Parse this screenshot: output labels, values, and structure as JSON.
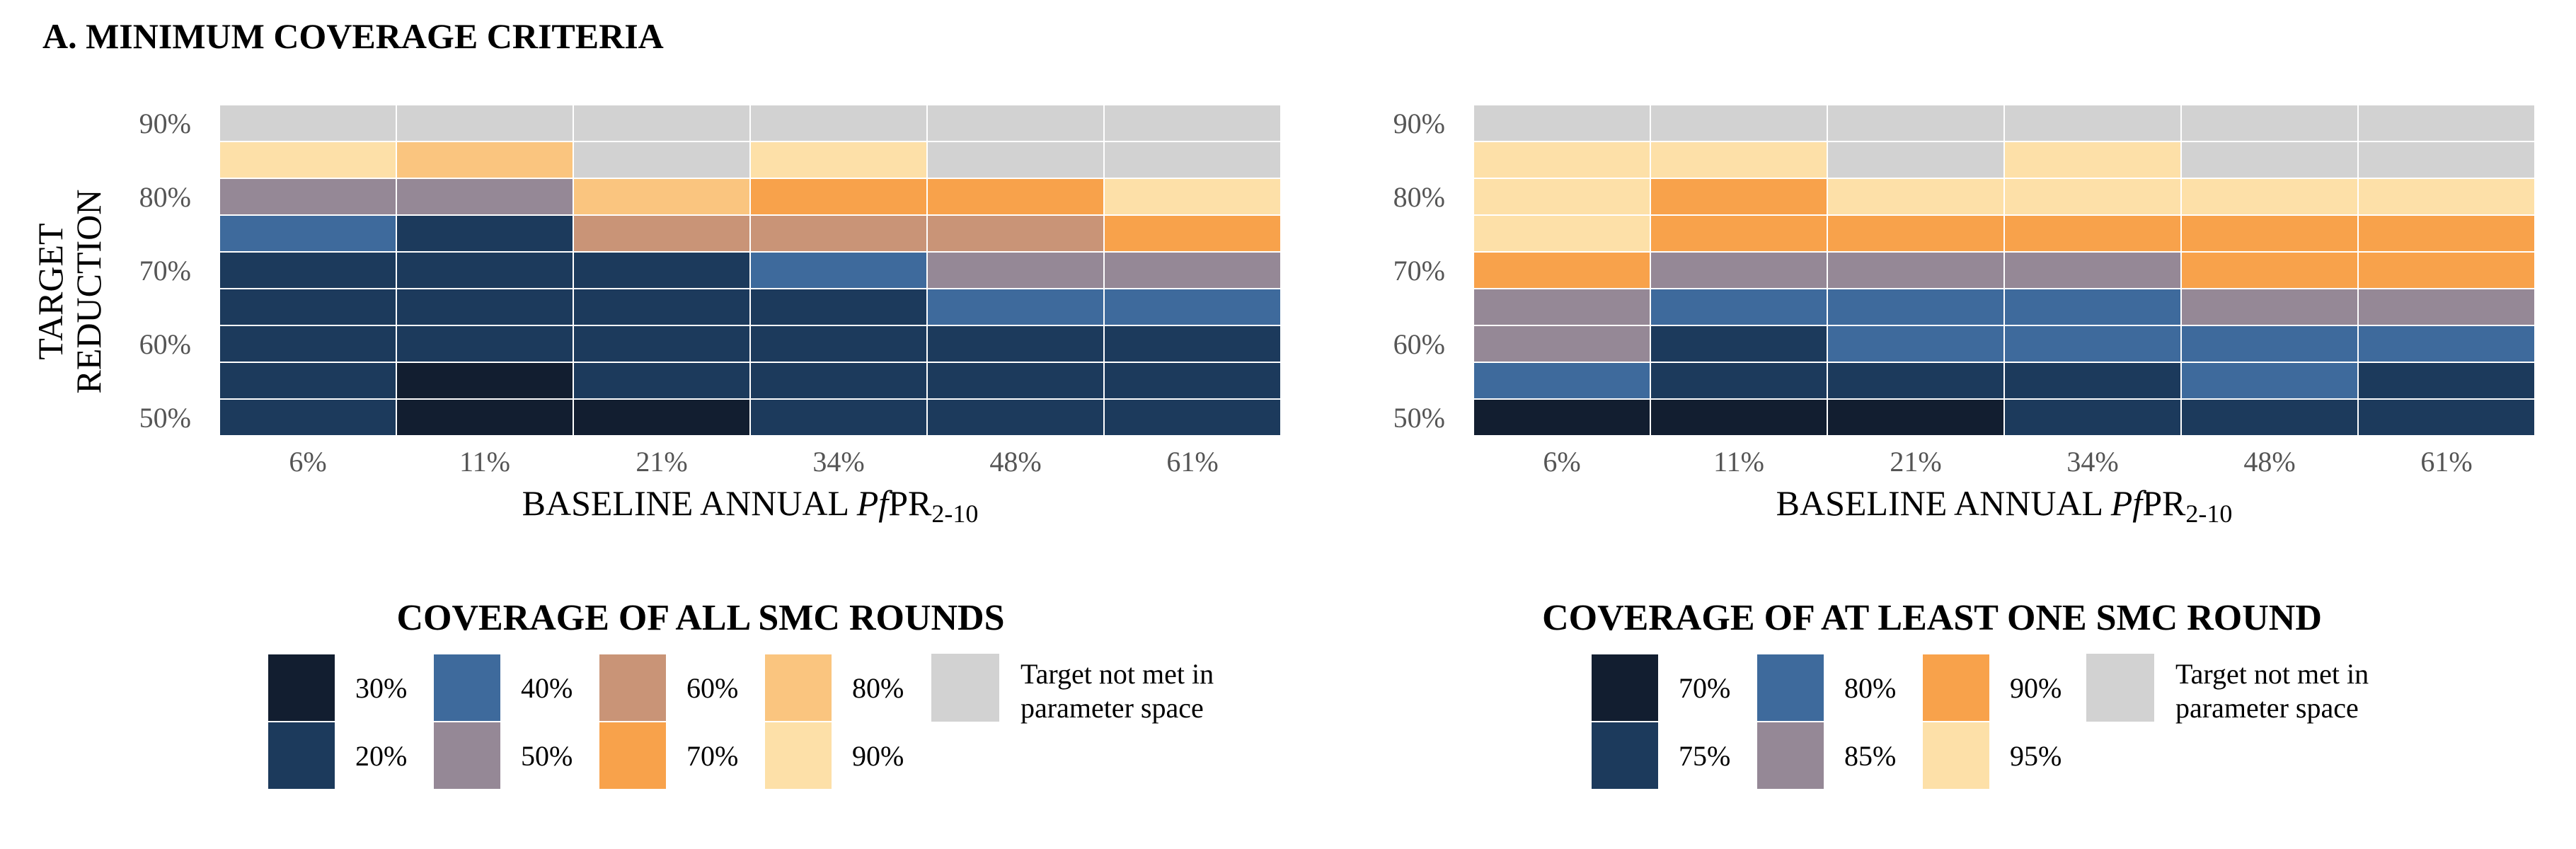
{
  "figure_title": "A.  MINIMUM  COVERAGE  CRITERIA",
  "chart_data": [
    {
      "type": "heatmap",
      "title": "",
      "ylabel_lines": [
        "TARGET",
        "REDUCTION"
      ],
      "xlabel": {
        "prefix": "BASELINE ANNUAL ",
        "italic": "Pf",
        "main": "PR",
        "sub": "2-10"
      },
      "x_categories": [
        "6%",
        "11%",
        "21%",
        "34%",
        "48%",
        "61%"
      ],
      "y_categories": [
        "50%",
        "55%",
        "60%",
        "65%",
        "70%",
        "75%",
        "80%",
        "85%",
        "90%"
      ],
      "y_tick_labels": [
        "50%",
        "60%",
        "70%",
        "80%",
        "90%"
      ],
      "cells": [
        [
          20,
          30,
          30,
          20,
          20,
          20
        ],
        [
          20,
          30,
          20,
          20,
          20,
          20
        ],
        [
          20,
          20,
          20,
          20,
          20,
          20
        ],
        [
          20,
          20,
          20,
          20,
          40,
          40
        ],
        [
          20,
          20,
          20,
          40,
          50,
          50
        ],
        [
          40,
          20,
          60,
          60,
          60,
          70
        ],
        [
          50,
          50,
          80,
          70,
          70,
          90
        ],
        [
          90,
          80,
          "NA",
          90,
          "NA",
          "NA"
        ],
        [
          "NA",
          "NA",
          "NA",
          "NA",
          "NA",
          "NA"
        ]
      ],
      "legend": {
        "title": "COVERAGE  OF  ALL  SMC  ROUNDS",
        "items": [
          {
            "label": "30%",
            "key": 30
          },
          {
            "label": "20%",
            "key": 20
          },
          {
            "label": "40%",
            "key": 40
          },
          {
            "label": "50%",
            "key": 50
          },
          {
            "label": "60%",
            "key": 60
          },
          {
            "label": "70%",
            "key": 70
          },
          {
            "label": "80%",
            "key": 80
          },
          {
            "label": "90%",
            "key": 90
          }
        ],
        "na_label_lines": [
          "Target not met in",
          "parameter space"
        ]
      },
      "colors": {
        "30": "#121e30",
        "20": "#1c3a5c",
        "40": "#3e6a9c",
        "50": "#958896",
        "60": "#c99477",
        "70": "#f8a24b",
        "80": "#fac57f",
        "90": "#fde0a8",
        "NA": "#d2d2d2"
      }
    },
    {
      "type": "heatmap",
      "title": "",
      "xlabel": {
        "prefix": "BASELINE ANNUAL ",
        "italic": "Pf",
        "main": "PR",
        "sub": "2-10"
      },
      "x_categories": [
        "6%",
        "11%",
        "21%",
        "34%",
        "48%",
        "61%"
      ],
      "y_categories": [
        "50%",
        "55%",
        "60%",
        "65%",
        "70%",
        "75%",
        "80%",
        "85%",
        "90%"
      ],
      "y_tick_labels": [
        "50%",
        "60%",
        "70%",
        "80%",
        "90%"
      ],
      "cells": [
        [
          70,
          70,
          70,
          75,
          75,
          75
        ],
        [
          80,
          75,
          75,
          75,
          80,
          75
        ],
        [
          85,
          75,
          80,
          80,
          80,
          80
        ],
        [
          85,
          80,
          80,
          80,
          85,
          85
        ],
        [
          90,
          85,
          85,
          85,
          90,
          90
        ],
        [
          95,
          90,
          90,
          90,
          90,
          90
        ],
        [
          95,
          90,
          95,
          95,
          95,
          95
        ],
        [
          95,
          95,
          "NA",
          95,
          "NA",
          "NA"
        ],
        [
          "NA",
          "NA",
          "NA",
          "NA",
          "NA",
          "NA"
        ]
      ],
      "legend": {
        "title": "COVERAGE OF AT LEAST ONE SMC ROUND",
        "items": [
          {
            "label": "70%",
            "key": 70
          },
          {
            "label": "75%",
            "key": 75
          },
          {
            "label": "80%",
            "key": 80
          },
          {
            "label": "85%",
            "key": 85
          },
          {
            "label": "90%",
            "key": 90
          },
          {
            "label": "95%",
            "key": 95
          }
        ],
        "na_label_lines": [
          "Target not met in",
          "parameter space"
        ]
      },
      "colors": {
        "70": "#121e30",
        "75": "#1c3a5c",
        "80": "#3e6a9c",
        "85": "#958896",
        "90": "#f8a24b",
        "95": "#fde0a8",
        "NA": "#d2d2d2"
      }
    }
  ]
}
